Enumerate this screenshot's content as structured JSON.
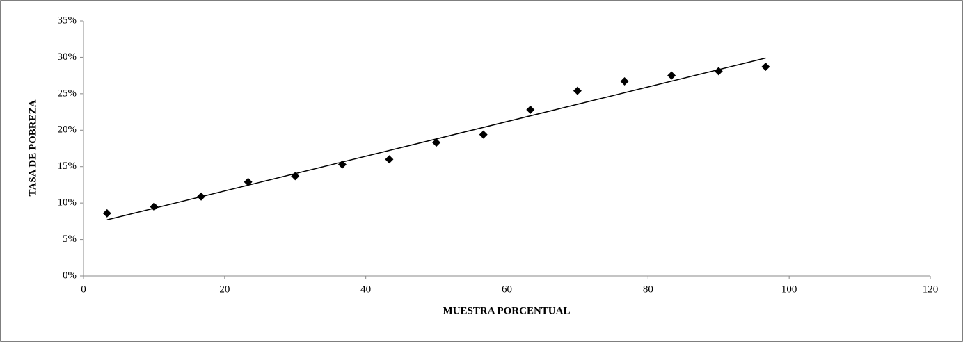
{
  "chart_data": {
    "type": "scatter",
    "x_label": "MUESTRA PORCENTUAL",
    "y_label": "TASA DE POBREZA",
    "x": [
      3.33,
      10,
      16.67,
      23.33,
      30,
      36.67,
      43.33,
      50,
      56.67,
      63.33,
      70,
      76.67,
      83.33,
      90,
      96.67
    ],
    "values": [
      8.6,
      9.5,
      10.9,
      12.9,
      13.7,
      15.3,
      16.0,
      18.3,
      19.4,
      22.8,
      25.4,
      26.7,
      27.5,
      28.1,
      28.7
    ],
    "color": "#000000",
    "trend": {
      "x": [
        3.33,
        96.67
      ],
      "values": [
        7.7,
        29.9
      ]
    },
    "xlim": [
      0,
      120
    ],
    "xticks": [
      0,
      20,
      40,
      60,
      80,
      100,
      120
    ],
    "ylim": [
      0,
      35
    ],
    "yticks": [
      {
        "value": 0,
        "label": "0%"
      },
      {
        "value": 5,
        "label": "5%"
      },
      {
        "value": 10,
        "label": "10%"
      },
      {
        "value": 15,
        "label": "15%"
      },
      {
        "value": 20,
        "label": "20%"
      },
      {
        "value": 25,
        "label": "25%"
      },
      {
        "value": 30,
        "label": "30%"
      },
      {
        "value": 35,
        "label": "35%"
      }
    ],
    "grid": false
  }
}
